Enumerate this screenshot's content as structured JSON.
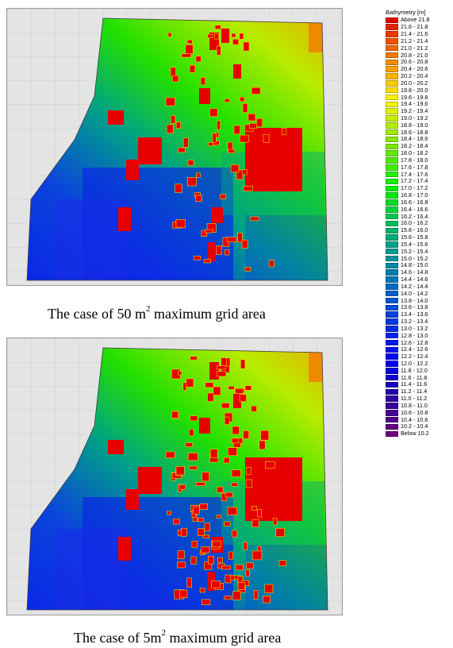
{
  "legend": {
    "title": "Bathymetry [m]",
    "items": [
      {
        "label": "Above 21.8",
        "color": "#e60000"
      },
      {
        "label": "21.6 - 21.8",
        "color": "#ea2200"
      },
      {
        "label": "21.4 - 21.6",
        "color": "#ec3a00"
      },
      {
        "label": "21.2 - 21.4",
        "color": "#ee5000"
      },
      {
        "label": "21.0 - 21.2",
        "color": "#f06600"
      },
      {
        "label": "20.8 - 21.0",
        "color": "#f27a00"
      },
      {
        "label": "20.6 - 20.8",
        "color": "#f48e00"
      },
      {
        "label": "20.4 - 20.6",
        "color": "#f6a200"
      },
      {
        "label": "20.2 - 20.4",
        "color": "#f8b600"
      },
      {
        "label": "20.0 - 20.2",
        "color": "#facc00"
      },
      {
        "label": "19.8 - 20.0",
        "color": "#fce000"
      },
      {
        "label": "19.6 - 19.8",
        "color": "#fff200"
      },
      {
        "label": "19.4 - 19.6",
        "color": "#f0f500"
      },
      {
        "label": "19.2 - 19.4",
        "color": "#ddf200"
      },
      {
        "label": "19.0 - 19.2",
        "color": "#c8ee00"
      },
      {
        "label": "18.8 - 19.0",
        "color": "#b4ec00"
      },
      {
        "label": "18.6 - 18.8",
        "color": "#a0ea00"
      },
      {
        "label": "18.4 - 18.6",
        "color": "#8ce800"
      },
      {
        "label": "18.2 - 18.4",
        "color": "#78e800"
      },
      {
        "label": "18.0 - 18.2",
        "color": "#64e800"
      },
      {
        "label": "17.8 - 18.0",
        "color": "#50ea00"
      },
      {
        "label": "17.6 - 17.8",
        "color": "#3cec00"
      },
      {
        "label": "17.4 - 17.6",
        "color": "#28ee00"
      },
      {
        "label": "17.2 - 17.4",
        "color": "#14f000"
      },
      {
        "label": "17.0 - 17.2",
        "color": "#00f000"
      },
      {
        "label": "16.8 - 17.0",
        "color": "#00e614"
      },
      {
        "label": "16.6 - 16.8",
        "color": "#00dc28"
      },
      {
        "label": "16.4 - 16.6",
        "color": "#00d23a"
      },
      {
        "label": "16.2 - 16.4",
        "color": "#00c84c"
      },
      {
        "label": "16.0 - 16.2",
        "color": "#00be5c"
      },
      {
        "label": "15.8 - 16.0",
        "color": "#00b46a"
      },
      {
        "label": "15.6 - 15.8",
        "color": "#00aa78"
      },
      {
        "label": "15.4 - 15.6",
        "color": "#00a284"
      },
      {
        "label": "15.2 - 15.4",
        "color": "#009a90"
      },
      {
        "label": "15.0 - 15.2",
        "color": "#00929a"
      },
      {
        "label": "14.8 - 15.0",
        "color": "#0088a4"
      },
      {
        "label": "14.6 - 14.8",
        "color": "#007eae"
      },
      {
        "label": "14.4 - 14.6",
        "color": "#0074b8"
      },
      {
        "label": "14.2 - 14.4",
        "color": "#006ac0"
      },
      {
        "label": "14.0 - 14.2",
        "color": "#0060c8"
      },
      {
        "label": "13.8 - 14.0",
        "color": "#0056d0"
      },
      {
        "label": "13.6 - 13.8",
        "color": "#004cd6"
      },
      {
        "label": "13.4 - 13.6",
        "color": "#0042dc"
      },
      {
        "label": "13.2 - 13.4",
        "color": "#0038e2"
      },
      {
        "label": "13.0 - 13.2",
        "color": "#002ee8"
      },
      {
        "label": "12.8 - 13.0",
        "color": "#0024ee"
      },
      {
        "label": "12.6 - 12.8",
        "color": "#001af2"
      },
      {
        "label": "12.4 - 12.6",
        "color": "#0010f6"
      },
      {
        "label": "12.2 - 12.4",
        "color": "#0006fa"
      },
      {
        "label": "12.0 - 12.2",
        "color": "#0000ee"
      },
      {
        "label": "11.8 - 12.0",
        "color": "#0800dc"
      },
      {
        "label": "11.6 - 11.8",
        "color": "#1000cc"
      },
      {
        "label": "11.4 - 11.6",
        "color": "#1800bc"
      },
      {
        "label": "11.2 - 11.4",
        "color": "#2200ae"
      },
      {
        "label": "11.0 - 11.2",
        "color": "#2c00a2"
      },
      {
        "label": "10.8 - 11.0",
        "color": "#380098"
      },
      {
        "label": "10.6 - 10.8",
        "color": "#440090"
      },
      {
        "label": "10.4 - 10.6",
        "color": "#520088"
      },
      {
        "label": "10.2 - 10.4",
        "color": "#600080"
      },
      {
        "label": "Below 10.2",
        "color": "#70007a"
      }
    ]
  },
  "captions": {
    "top": {
      "prefix": "The case of 50 m",
      "sup": "2",
      "suffix": " maximum grid area"
    },
    "bottom": {
      "prefix": "The case of 5m",
      "sup": "2",
      "suffix": " maximum grid area"
    }
  },
  "colors": {
    "building": "#e60000",
    "blue_low": "#0a22e8",
    "blue_mid": "#0a55d6",
    "teal": "#00a884",
    "green": "#22e000",
    "yellow_green": "#c8ee00",
    "orange": "#f6a200",
    "grid_bg": "#e4e4e4"
  }
}
